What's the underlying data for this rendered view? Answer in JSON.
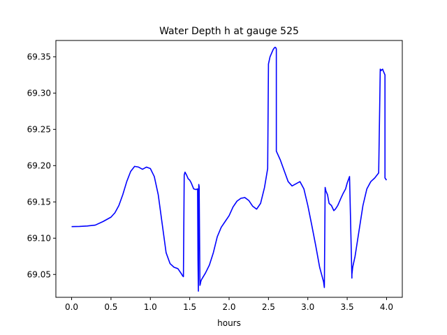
{
  "chart_data": {
    "type": "line",
    "title": "Water Depth h at gauge 525",
    "xlabel": "hours",
    "ylabel": "",
    "xlim": [
      -0.2,
      4.2
    ],
    "ylim": [
      69.0185,
      69.3725
    ],
    "xticks": [
      0.0,
      0.5,
      1.0,
      1.5,
      2.0,
      2.5,
      3.0,
      3.5,
      4.0
    ],
    "xtick_labels": [
      "0.0",
      "0.5",
      "1.0",
      "1.5",
      "2.0",
      "2.5",
      "3.0",
      "3.5",
      "4.0"
    ],
    "yticks": [
      69.05,
      69.1,
      69.15,
      69.2,
      69.25,
      69.3,
      69.35
    ],
    "ytick_labels": [
      "69.05",
      "69.10",
      "69.15",
      "69.20",
      "69.25",
      "69.30",
      "69.35"
    ],
    "grid": false,
    "series": [
      {
        "color": "#0000ff",
        "x": [
          0.0,
          0.1,
          0.2,
          0.3,
          0.4,
          0.5,
          0.55,
          0.6,
          0.65,
          0.7,
          0.75,
          0.8,
          0.85,
          0.9,
          0.95,
          1.0,
          1.05,
          1.1,
          1.15,
          1.2,
          1.25,
          1.3,
          1.35,
          1.4,
          1.41,
          1.42,
          1.43,
          1.44,
          1.46,
          1.48,
          1.5,
          1.52,
          1.55,
          1.58,
          1.6,
          1.605,
          1.61,
          1.615,
          1.62,
          1.63,
          1.635,
          1.64,
          1.65,
          1.7,
          1.75,
          1.8,
          1.85,
          1.9,
          1.95,
          2.0,
          2.05,
          2.1,
          2.15,
          2.2,
          2.25,
          2.3,
          2.35,
          2.4,
          2.45,
          2.49,
          2.5,
          2.5,
          2.52,
          2.54,
          2.56,
          2.58,
          2.59,
          2.6,
          2.6,
          2.65,
          2.7,
          2.75,
          2.8,
          2.85,
          2.9,
          2.95,
          3.0,
          3.05,
          3.1,
          3.15,
          3.2,
          3.21,
          3.22,
          3.23,
          3.25,
          3.27,
          3.3,
          3.33,
          3.35,
          3.38,
          3.4,
          3.42,
          3.45,
          3.48,
          3.5,
          3.53,
          3.56,
          3.56,
          3.57,
          3.6,
          3.65,
          3.7,
          3.75,
          3.8,
          3.85,
          3.9,
          3.92,
          3.93,
          3.95,
          3.96,
          3.98,
          3.98,
          4.0
        ],
        "y": [
          69.116,
          69.1162,
          69.1168,
          69.118,
          69.123,
          69.129,
          69.135,
          69.145,
          69.16,
          69.178,
          69.192,
          69.199,
          69.198,
          69.195,
          69.198,
          69.196,
          69.185,
          69.16,
          69.12,
          69.08,
          69.065,
          69.06,
          69.058,
          69.05,
          69.048,
          69.047,
          69.187,
          69.191,
          69.187,
          69.182,
          69.18,
          69.176,
          69.168,
          69.167,
          69.168,
          69.07,
          69.027,
          69.174,
          69.171,
          69.035,
          69.037,
          69.04,
          69.043,
          69.052,
          69.063,
          69.08,
          69.102,
          69.115,
          69.123,
          69.131,
          69.143,
          69.151,
          69.155,
          69.156,
          69.152,
          69.144,
          69.14,
          69.148,
          69.17,
          69.196,
          69.337,
          69.34,
          69.35,
          69.355,
          69.36,
          69.363,
          69.363,
          69.361,
          69.22,
          69.208,
          69.193,
          69.178,
          69.172,
          69.175,
          69.178,
          69.168,
          69.145,
          69.118,
          69.09,
          69.06,
          69.04,
          69.032,
          69.17,
          69.165,
          69.16,
          69.148,
          69.145,
          69.138,
          69.14,
          69.145,
          69.15,
          69.155,
          69.162,
          69.168,
          69.176,
          69.185,
          69.045,
          69.05,
          69.06,
          69.075,
          69.11,
          69.145,
          69.168,
          69.178,
          69.183,
          69.19,
          69.333,
          69.331,
          69.333,
          69.33,
          69.325,
          69.183,
          69.18
        ]
      }
    ]
  }
}
